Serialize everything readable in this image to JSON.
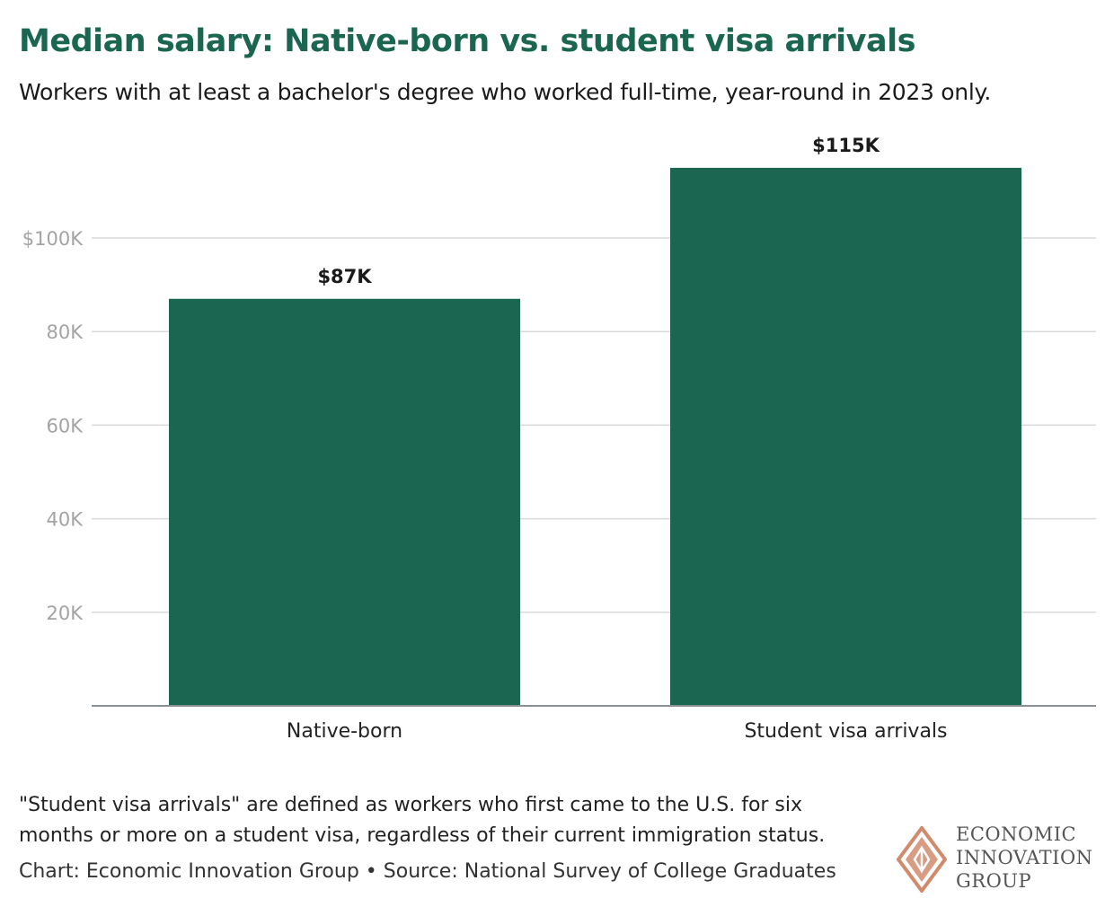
{
  "header": {
    "title": "Median salary: Native-born vs. student visa arrivals",
    "subtitle": "Workers with at least a bachelor's degree who worked full-time, year-round in 2023 only."
  },
  "chart_data": {
    "type": "bar",
    "categories": [
      "Native-born",
      "Student visa arrivals"
    ],
    "values": [
      87000,
      115000
    ],
    "data_labels": [
      "$87K",
      "$115K"
    ],
    "title": "Median salary: Native-born vs. student visa arrivals",
    "subtitle": "Workers with at least a bachelor's degree who worked full-time, year-round in 2023 only.",
    "xlabel": "",
    "ylabel": "",
    "ylim": [
      0,
      124000
    ],
    "yticks": [
      20000,
      40000,
      60000,
      80000,
      100000
    ],
    "ytick_labels": [
      "20K",
      "40K",
      "60K",
      "80K",
      "$100K"
    ],
    "grid": true,
    "legend": "none",
    "bar_color": "#1b6650"
  },
  "footer": {
    "note": "\"Student visa arrivals\" are defined as workers who first came to the U.S. for six months or more on a student visa, regardless of their current immigration status.",
    "credit": "Chart: Economic Innovation Group • Source: National Survey of College Graduates"
  },
  "logo": {
    "lines": [
      "ECONOMIC",
      "INNOVATION",
      "GROUP"
    ],
    "color": "#d08b6c"
  }
}
